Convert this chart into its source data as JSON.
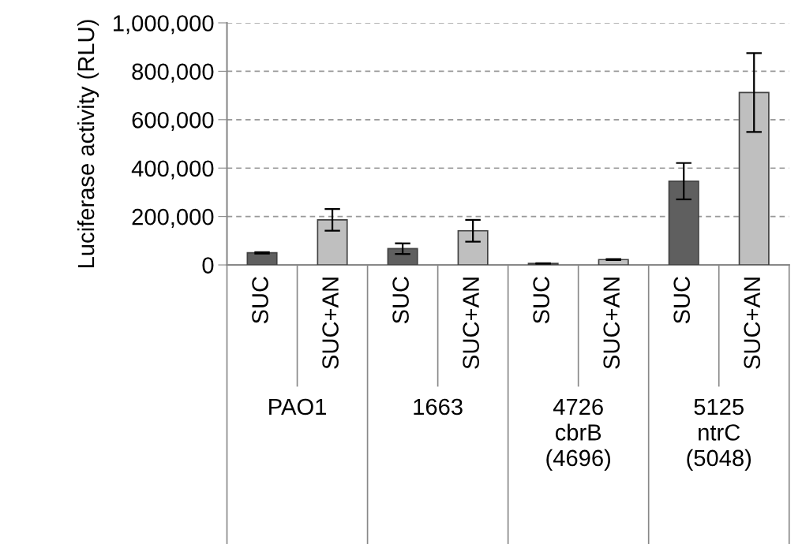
{
  "chart_data": {
    "type": "bar",
    "ylabel": "Luciferase activity (RLU)",
    "categories": [
      "SUC",
      "SUC+AN",
      "SUC",
      "SUC+AN",
      "SUC",
      "SUC+AN",
      "SUC",
      "SUC+AN"
    ],
    "values": [
      50000,
      186000,
      67000,
      141000,
      6000,
      22000,
      346000,
      712000
    ],
    "errors": [
      3000,
      45000,
      22000,
      45000,
      1000,
      2000,
      75000,
      163000
    ],
    "colors": [
      "#5f5f5f",
      "#bfbfbf",
      "#5f5f5f",
      "#bfbfbf",
      "#5f5f5f",
      "#bfbfbf",
      "#5f5f5f",
      "#bfbfbf"
    ],
    "annotations": [
      "PAO1",
      "1663",
      "4726\ncbrB\n(4696)",
      "5125\nntrC\n(5048)"
    ],
    "ylim": [
      0,
      1000000
    ],
    "yticks": [
      0,
      {
        "value": 200000,
        "label": "200,000"
      },
      {
        "value": 400000,
        "label": "400,000"
      },
      {
        "value": 600000,
        "label": "600,000"
      },
      {
        "value": 800000,
        "label": "800,000"
      },
      {
        "value": 1000000,
        "label": "1,000,000"
      }
    ],
    "grid": "y"
  }
}
